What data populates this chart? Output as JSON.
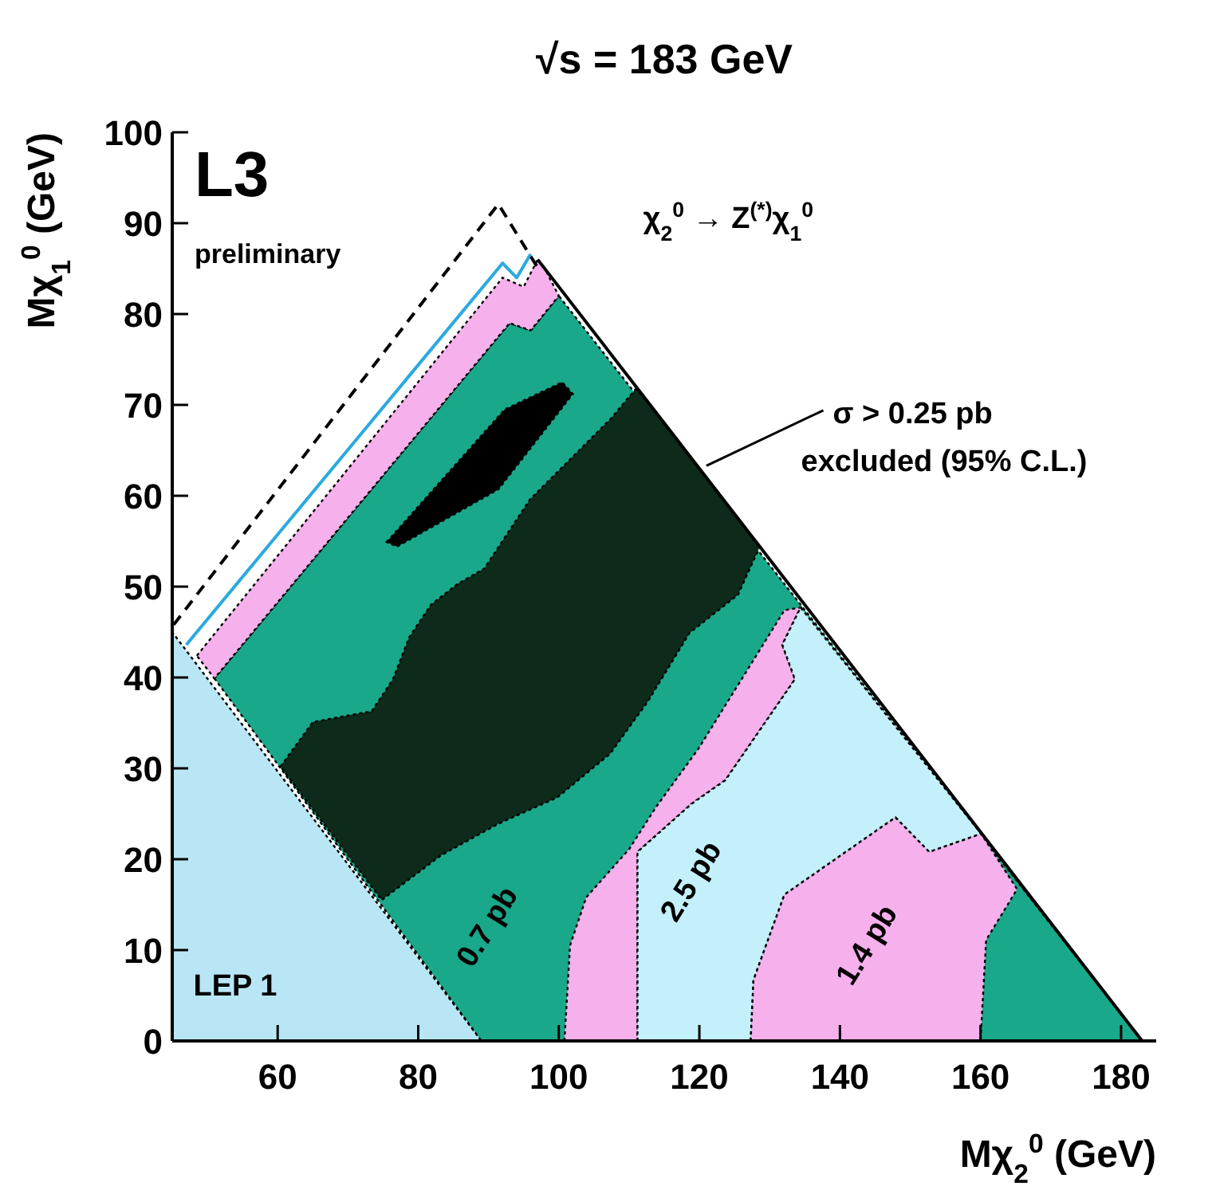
{
  "chart_data": {
    "type": "area",
    "title": "√s = 183 GeV",
    "xlabel": "Mχ$_{2}$$^{0}$ (GeV)",
    "ylabel": "Mχ$_{1}$$^{0}$ (GeV)",
    "xlim": [
      45,
      185
    ],
    "ylim": [
      0,
      100
    ],
    "xticks": [
      60,
      80,
      100,
      120,
      140,
      160,
      180
    ],
    "yticks": [
      0,
      10,
      20,
      30,
      40,
      50,
      60,
      70,
      80,
      90,
      100
    ],
    "grid": false,
    "series": [
      {
        "color": "#b9e6f5",
        "x": [
          45,
          45,
          89
        ],
        "values": [
          0,
          45,
          0
        ]
      },
      {
        "color": "#1aa88a",
        "x": [
          51,
          93,
          96,
          100,
          183,
          89
        ],
        "values": [
          39.9,
          79,
          78.2,
          82,
          0,
          0
        ]
      },
      {
        "color": "#f6b0ec",
        "x": [
          48.5,
          92,
          95,
          97,
          98,
          100,
          96,
          93,
          51
        ],
        "values": [
          42.4,
          84,
          83,
          86,
          85,
          82,
          78.2,
          79,
          39.9
        ]
      },
      {
        "color": "#0d2a1a",
        "x": [
          60.4,
          65,
          73.4,
          76.4,
          78.7,
          81.8,
          85.6,
          89.4,
          95.9,
          107.3,
          111.1,
          128.6,
          125.5,
          118.6,
          112.7,
          107.3,
          99.8,
          91.4,
          83.2,
          74.8
        ],
        "values": [
          30.2,
          35.1,
          36.3,
          39.8,
          44.4,
          48,
          50.3,
          52,
          59.6,
          68.4,
          71.9,
          54.4,
          49.1,
          44.9,
          37.4,
          31.6,
          26.8,
          23.9,
          20.4,
          15.5
        ]
      },
      {
        "color": "#000000",
        "x": [
          75.5,
          92.3,
          100.5,
          102,
          91.4,
          77
        ],
        "values": [
          54.9,
          69.5,
          72.5,
          71.2,
          60.7,
          54.4
        ]
      },
      {
        "color": "#f6b0ec",
        "x": [
          100.8,
          101.6,
          103.9,
          110,
          113.8,
          119.9,
          132.1,
          134.4,
          131.8,
          133.6,
          123.7,
          118.9,
          111.2,
          111.2
        ],
        "values": [
          0,
          10.5,
          15.8,
          21.1,
          25.7,
          32.2,
          47.4,
          47.7,
          43.6,
          39.8,
          28.7,
          26.1,
          20.8,
          0
        ]
      },
      {
        "color": "#c4f0fb",
        "x": [
          111.2,
          111.2,
          118.9,
          123.7,
          133.6,
          131.8,
          134.4,
          160.1,
          152.7,
          147.9,
          132.1,
          127.7,
          127.3
        ],
        "values": [
          0,
          20.8,
          26.1,
          28.7,
          39.8,
          43.6,
          47.7,
          22.8,
          20.8,
          24.6,
          16.1,
          6.7,
          0
        ]
      },
      {
        "color": "#f6b0ec",
        "x": [
          127.3,
          127.7,
          132.1,
          147.9,
          152.7,
          160.1,
          165.2,
          160.8,
          160
        ],
        "values": [
          0,
          6.7,
          16.1,
          24.6,
          20.8,
          22.8,
          16.7,
          11.1,
          0
        ]
      },
      {
        "type": "line",
        "color": "#2aa9e0",
        "line_style": "solid",
        "x": [
          47,
          92,
          94,
          96
        ],
        "values": [
          43.6,
          85.6,
          84,
          86.6
        ]
      },
      {
        "type": "line",
        "color": "#000000",
        "line_style": "dashed",
        "x": [
          45.2,
          91.4,
          97
        ],
        "values": [
          45.8,
          92.1,
          85.1
        ]
      },
      {
        "type": "line",
        "color": "#000000",
        "line_style": "solid",
        "x": [
          97,
          183
        ],
        "values": [
          86,
          0
        ]
      }
    ],
    "annotations": [
      "L3",
      "preliminary",
      "χ$_{2}$$^{0}$ → Z$^{(*)}$χ$_{1}$$^{0}$",
      {
        "text": "σ > 0.25 pb\nexcluded (95% C.L.)",
        "x": 121,
        "y": 63.3
      },
      "0.7 pb",
      "2.5 pb",
      "1.4 pb",
      "LEP 1"
    ]
  }
}
